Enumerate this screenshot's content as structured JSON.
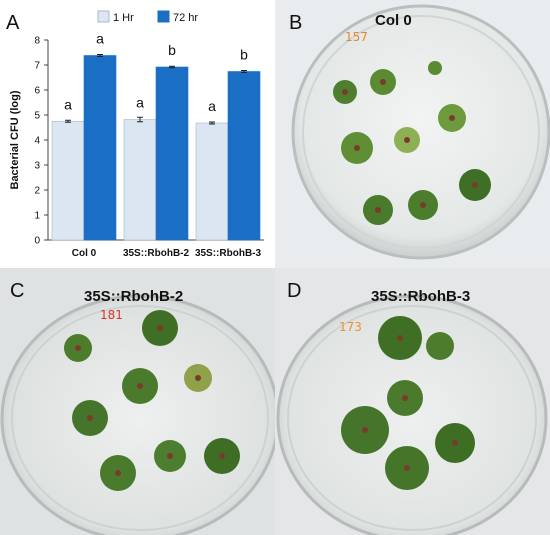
{
  "panels": {
    "a": {
      "letter": "A"
    },
    "b": {
      "letter": "B",
      "title": "Col 0",
      "handwriting": "157"
    },
    "c": {
      "letter": "C",
      "title": "35S::RbohB-2",
      "handwriting": "181"
    },
    "d": {
      "letter": "D",
      "title": "35S::RbohB-3",
      "handwriting": "173"
    }
  },
  "chart_data": {
    "type": "bar",
    "ylabel": "Bacterial CFU (log)",
    "xlabel": "",
    "ylim": [
      0,
      8
    ],
    "yticks": [
      0,
      1,
      2,
      3,
      4,
      5,
      6,
      7,
      8
    ],
    "categories": [
      "Col 0",
      "35S::RbohB-2",
      "35S::RbohB-3"
    ],
    "legend_position": "top",
    "grid": false,
    "series": [
      {
        "name": "1 Hr",
        "color": "#dce6f2",
        "values": [
          4.75,
          4.82,
          4.68
        ],
        "errors": [
          0.04,
          0.09,
          0.04
        ],
        "letters": [
          "a",
          "a",
          "a"
        ]
      },
      {
        "name": "72 hr",
        "color": "#1a6fc4",
        "values": [
          7.38,
          6.92,
          6.74
        ],
        "errors": [
          0.04,
          0.03,
          0.04
        ],
        "letters": [
          "a",
          "b",
          "b"
        ]
      }
    ]
  }
}
